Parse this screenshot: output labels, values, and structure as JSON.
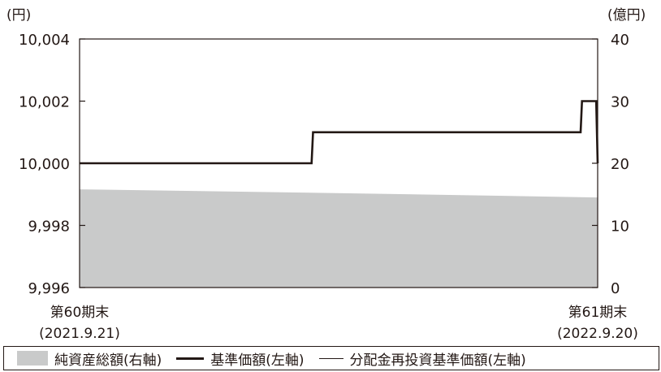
{
  "chart_data": {
    "type": "line",
    "left_axis": {
      "unit": "(円)",
      "range": [
        9996,
        10004
      ],
      "tick_labels": [
        "10,004",
        "10,002",
        "10,000",
        "9,998",
        "9,996"
      ]
    },
    "right_axis": {
      "unit": "(億円)",
      "range": [
        0,
        40
      ],
      "tick_labels": [
        "40",
        "30",
        "20",
        "10",
        "0"
      ]
    },
    "x_labels": [
      {
        "period": "第60期末",
        "date": "(2021.9.21)"
      },
      {
        "period": "第61期末",
        "date": "(2022.9.20)"
      }
    ],
    "x_range": [
      "2021-09-21",
      "2022-09-20"
    ],
    "series": [
      {
        "name": "純資産総額(右軸)",
        "axis": "right",
        "style": "area",
        "color": "#c9caca",
        "points": [
          [
            "2021-09-21",
            15.8
          ],
          [
            "2022-03-20",
            15.2
          ],
          [
            "2022-09-20",
            14.5
          ]
        ]
      },
      {
        "name": "基準価額(左軸)",
        "axis": "left",
        "style": "step-line",
        "color": "#231815",
        "points": [
          [
            "2021-09-21",
            10000
          ],
          [
            "2022-03-03",
            10000
          ],
          [
            "2022-03-04",
            10001
          ],
          [
            "2022-09-08",
            10001
          ],
          [
            "2022-09-09",
            10002
          ],
          [
            "2022-09-19",
            10002
          ],
          [
            "2022-09-20",
            10000
          ]
        ]
      },
      {
        "name": "分配金再投資基準価額(左軸)",
        "axis": "left",
        "style": "thin-line",
        "color": "#231815",
        "same_as": "基準価額(左軸)"
      }
    ],
    "legend": [
      {
        "label": "純資産総額(右軸)",
        "swatch": "fill"
      },
      {
        "label": "基準価額(左軸)",
        "swatch": "thick-line"
      },
      {
        "label": "分配金再投資基準価額(左軸)",
        "swatch": "thin-line"
      }
    ],
    "legend_placement": "bottom",
    "grid": false
  }
}
